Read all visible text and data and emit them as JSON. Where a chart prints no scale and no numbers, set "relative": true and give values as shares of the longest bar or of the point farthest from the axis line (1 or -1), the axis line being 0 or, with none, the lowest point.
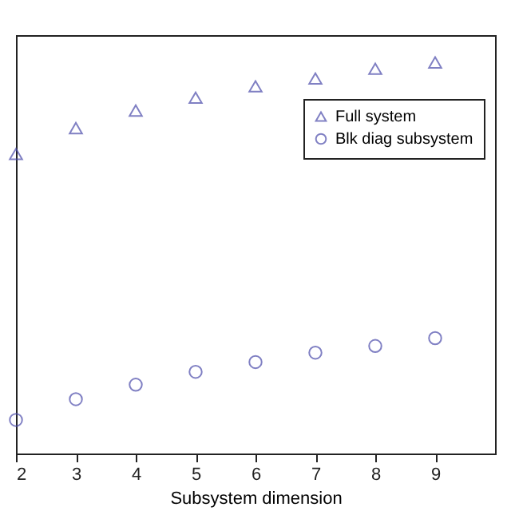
{
  "chart_data": {
    "type": "scatter",
    "xlabel": "Subsystem dimension",
    "x": [
      2,
      3,
      4,
      5,
      6,
      7,
      8,
      9
    ],
    "xlim": [
      2,
      10
    ],
    "xticks": [
      2,
      3,
      4,
      5,
      6,
      7,
      8,
      9
    ],
    "relative": true,
    "tick_labels": "x",
    "legend": "top right",
    "grid": false,
    "series": [
      {
        "name": "Full system",
        "color": "#4b4bab",
        "marker": "triangle",
        "values": [
          0.766,
          0.832,
          0.877,
          0.91,
          0.939,
          0.959,
          0.984,
          1
        ]
      },
      {
        "name": "Blk diag subsystem",
        "color": "#4b4bab",
        "marker": "circle",
        "values": [
          0.086,
          0.139,
          0.176,
          0.209,
          0.234,
          0.258,
          0.275,
          0.295
        ]
      }
    ]
  }
}
